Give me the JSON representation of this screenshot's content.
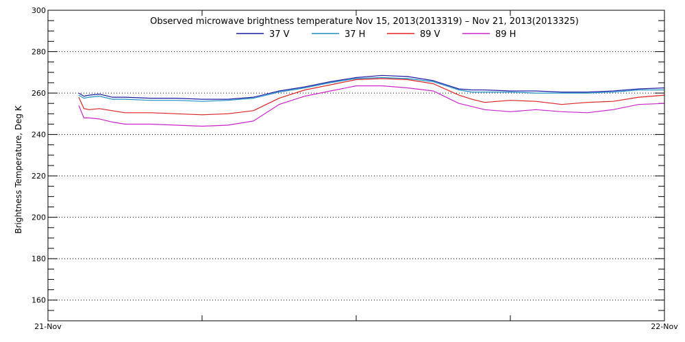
{
  "chart_data": {
    "type": "line",
    "title": "Observed microwave brightness temperature Nov 15, 2013(2013319) – Nov 21, 2013(2013325)",
    "xlabel": "",
    "ylabel": "Brightness Temperature, Deg K",
    "ylim": [
      150,
      300
    ],
    "yticks": [
      160,
      180,
      200,
      220,
      240,
      260,
      280,
      300
    ],
    "grid": true,
    "legend_position": "top-center",
    "xlim": [
      0,
      24
    ],
    "xtick_labels": [
      {
        "x": 0,
        "label": "21-Nov"
      },
      {
        "x": 24,
        "label": "22-Nov"
      }
    ],
    "x_unit": "hours since 21-Nov 00:00",
    "x": [
      1.2,
      1.4,
      1.6,
      2,
      2.5,
      3,
      4,
      5,
      6,
      7,
      8,
      9,
      10,
      11,
      12,
      13,
      14,
      15,
      16,
      16.5,
      17,
      18,
      19,
      20,
      21,
      22,
      23,
      24
    ],
    "series": [
      {
        "name": "37 V",
        "color": "#1a1aa6",
        "values": [
          260,
          258.5,
          259,
          259.5,
          258,
          258,
          257.5,
          257.5,
          257,
          257,
          258,
          261,
          263,
          265.5,
          267.5,
          268.5,
          268,
          266,
          262,
          261.5,
          261.5,
          261,
          261,
          260.5,
          260.5,
          261,
          262,
          262.5
        ]
      },
      {
        "name": "37 H",
        "color": "#1a8fc4",
        "values": [
          259,
          257.5,
          258,
          258.5,
          257,
          257,
          256.5,
          256.5,
          256,
          256.5,
          257.5,
          260.5,
          262.5,
          265,
          267,
          267.5,
          267,
          265.5,
          261.5,
          260.5,
          260.5,
          260.5,
          260,
          260,
          260,
          260.5,
          261.5,
          261.5
        ]
      },
      {
        "name": "89 V",
        "color": "#e02020",
        "values": [
          258,
          252.5,
          252,
          252.5,
          251.5,
          250.5,
          250.5,
          250,
          249.5,
          250,
          251.5,
          257.5,
          261.5,
          264,
          266.5,
          267,
          266.5,
          264.5,
          259,
          257,
          255.5,
          256.5,
          256,
          254.5,
          255.5,
          256,
          258,
          259
        ]
      },
      {
        "name": "89 H",
        "color": "#cc22cc",
        "values": [
          254,
          248,
          248,
          247.5,
          246,
          245,
          245,
          244.5,
          244,
          244.5,
          246.5,
          254.5,
          258.5,
          261,
          263.5,
          263.5,
          262.5,
          261,
          255,
          253.5,
          252,
          251,
          252,
          251,
          250.5,
          252,
          254.5,
          255
        ]
      }
    ]
  }
}
